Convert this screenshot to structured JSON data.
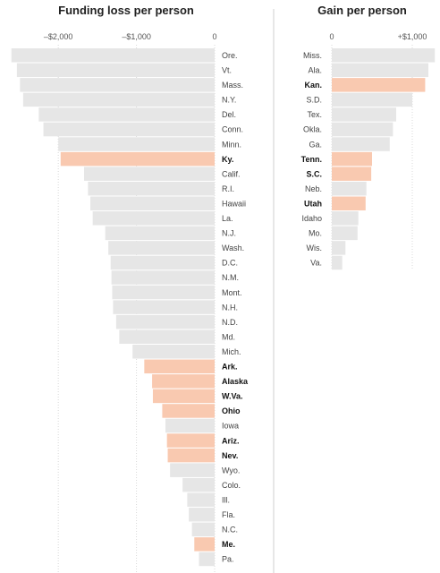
{
  "chart_data": [
    {
      "type": "bar",
      "orientation": "horizontal",
      "title": "Funding loss per person",
      "xlim": [
        -2700,
        0
      ],
      "ticks": [
        {
          "value": -2000,
          "label": "–$2,000"
        },
        {
          "value": -1000,
          "label": "–$1,000"
        },
        {
          "value": 0,
          "label": "0"
        }
      ],
      "grid": true,
      "colors": {
        "bar": "#e6e6e6",
        "highlight": "#f9c9b0"
      },
      "categories": [
        "Ore.",
        "Vt.",
        "Mass.",
        "N.Y.",
        "Del.",
        "Conn.",
        "Minn.",
        "Ky.",
        "Calif.",
        "R.I.",
        "Hawaii",
        "La.",
        "N.J.",
        "Wash.",
        "D.C.",
        "N.M.",
        "Mont.",
        "N.H.",
        "N.D.",
        "Md.",
        "Mich.",
        "Ark.",
        "Alaska",
        "W.Va.",
        "Ohio",
        "Iowa",
        "Ariz.",
        "Nev.",
        "Wyo.",
        "Colo.",
        "Ill.",
        "Fla.",
        "N.C.",
        "Me.",
        "Pa."
      ],
      "values": [
        -2600,
        -2530,
        -2490,
        -2450,
        -2250,
        -2190,
        -2000,
        -1970,
        -1670,
        -1620,
        -1590,
        -1560,
        -1400,
        -1360,
        -1330,
        -1320,
        -1310,
        -1300,
        -1260,
        -1220,
        -1050,
        -900,
        -800,
        -790,
        -670,
        -630,
        -610,
        -600,
        -570,
        -410,
        -350,
        -330,
        -290,
        -260,
        -200
      ],
      "highlighted": [
        "Ky.",
        "Ark.",
        "Alaska",
        "W.Va.",
        "Ohio",
        "Ariz.",
        "Nev.",
        "Me."
      ]
    },
    {
      "type": "bar",
      "orientation": "horizontal",
      "title": "Gain per person",
      "xlim": [
        0,
        1300
      ],
      "ticks": [
        {
          "value": 0,
          "label": "0"
        },
        {
          "value": 1000,
          "label": "+$1,000"
        }
      ],
      "grid": true,
      "colors": {
        "bar": "#e6e6e6",
        "highlight": "#f9c9b0"
      },
      "categories": [
        "Miss.",
        "Ala.",
        "Kan.",
        "S.D.",
        "Tex.",
        "Okla.",
        "Ga.",
        "Tenn.",
        "S.C.",
        "Neb.",
        "Utah",
        "Idaho",
        "Mo.",
        "Wis.",
        "Va."
      ],
      "values": [
        1280,
        1200,
        1160,
        1000,
        800,
        760,
        720,
        500,
        490,
        430,
        420,
        330,
        320,
        170,
        130
      ],
      "highlighted": [
        "Kan.",
        "Tenn.",
        "S.C.",
        "Utah"
      ]
    }
  ]
}
